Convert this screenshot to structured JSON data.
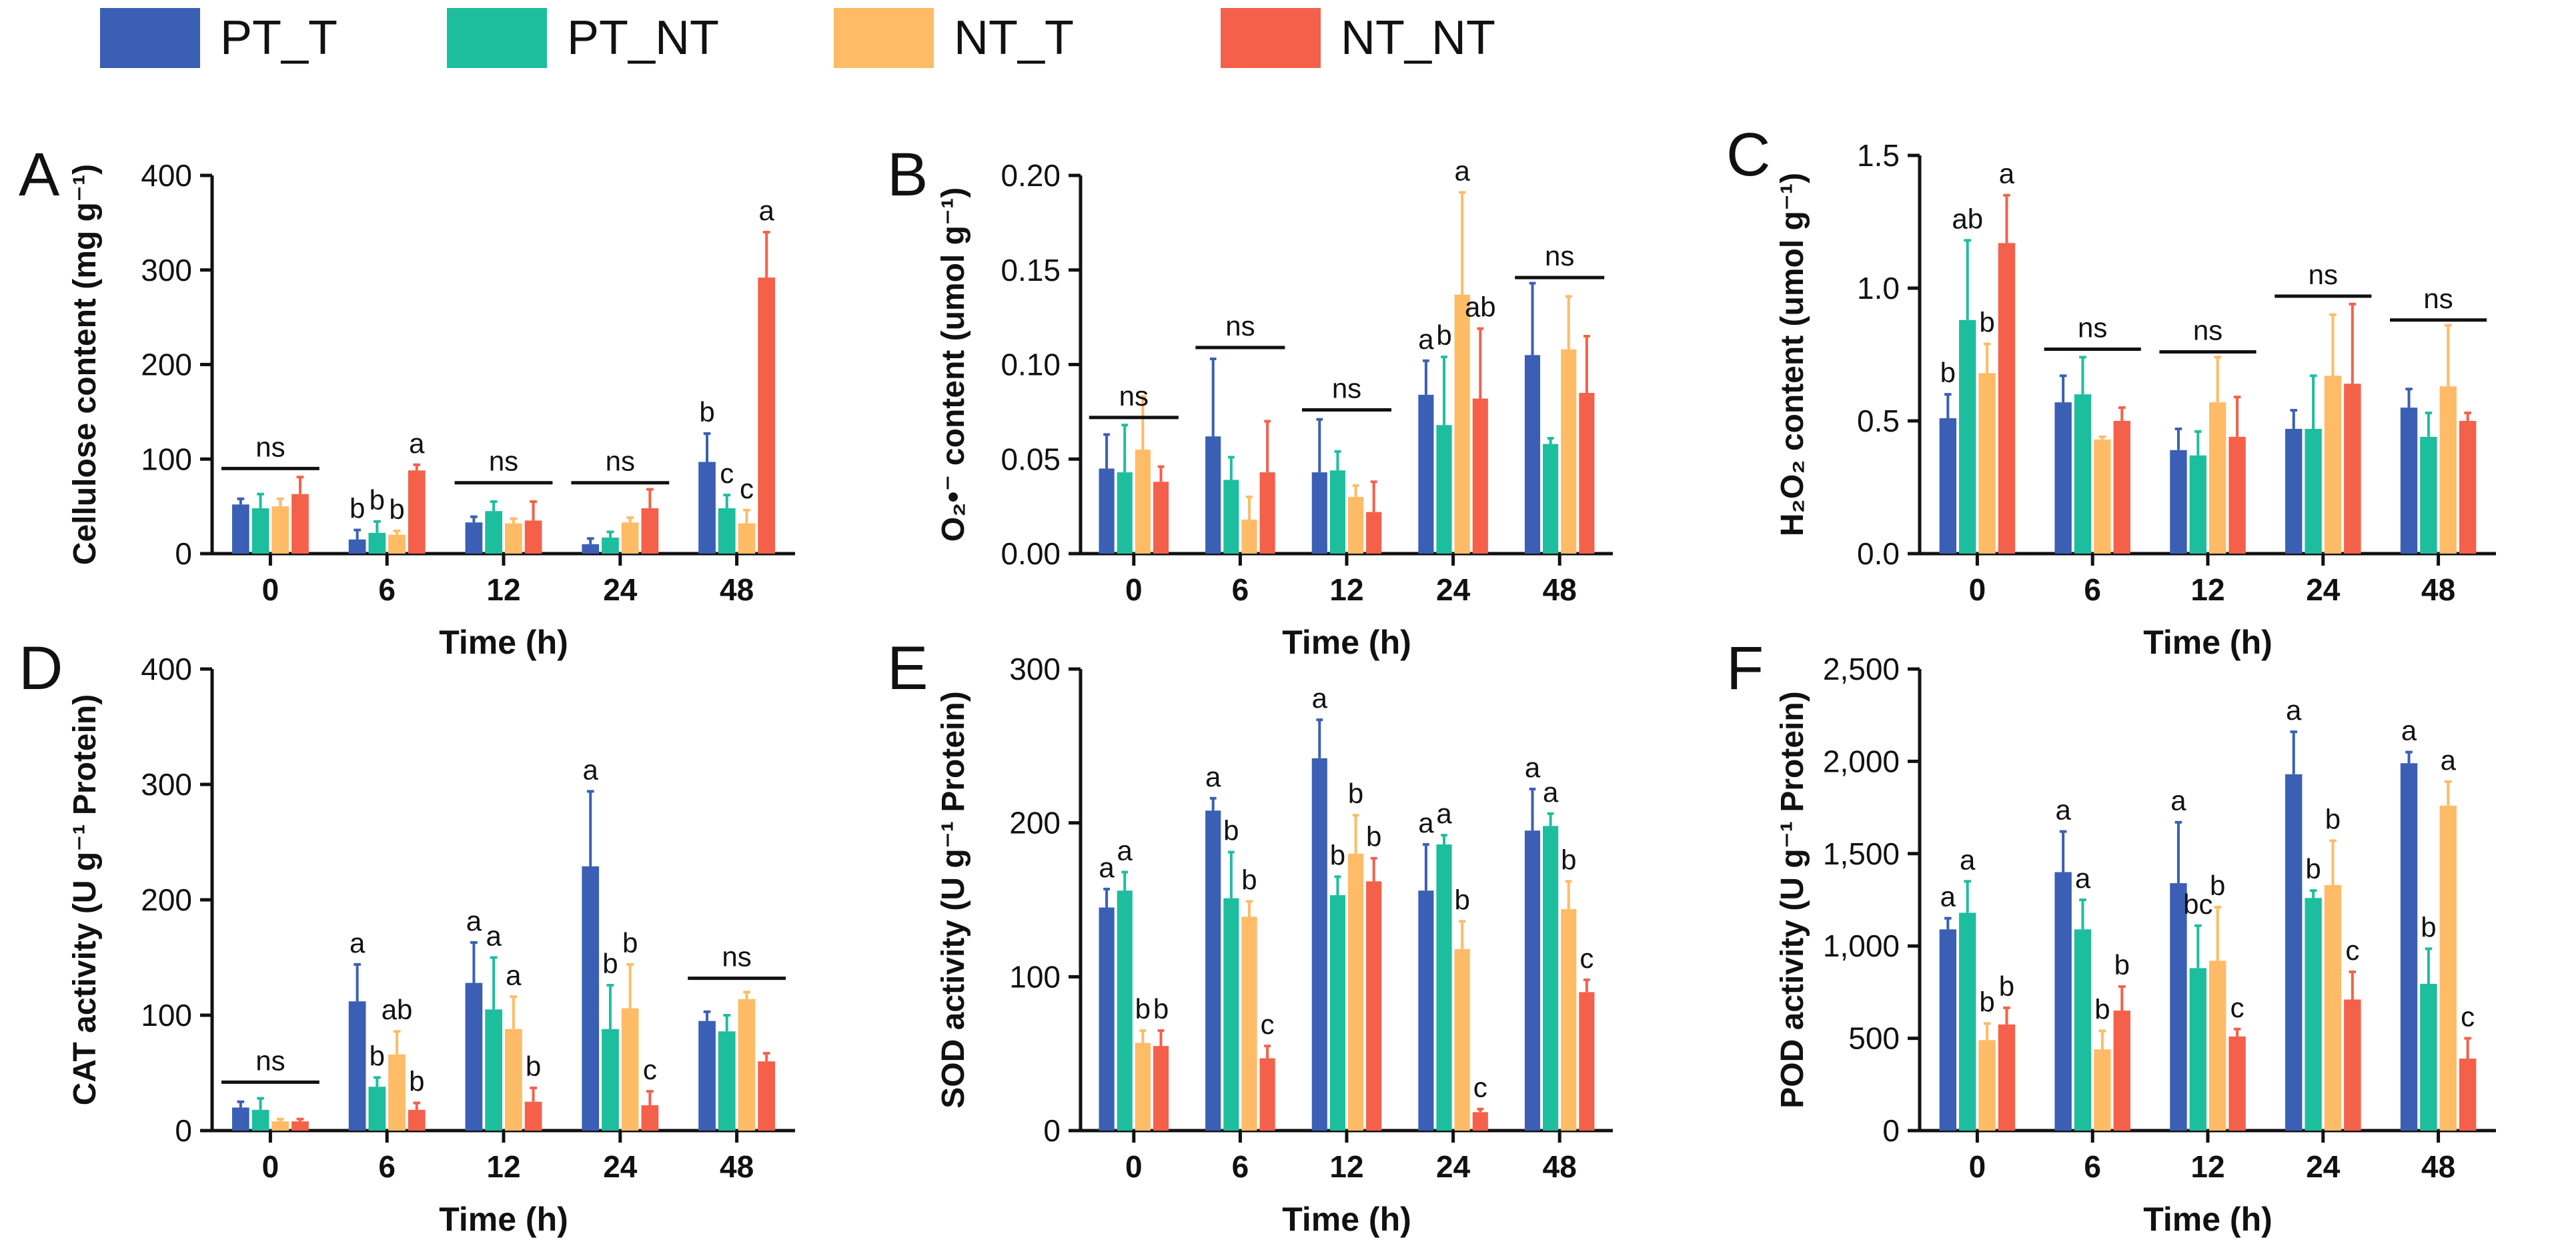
{
  "colors": {
    "PT_T": "#3A5FB5",
    "PT_NT": "#1DBE9E",
    "NT_T": "#FFBB66",
    "NT_NT": "#F4604A",
    "axis": "#111111"
  },
  "legend": {
    "items": [
      {
        "key": "PT_T",
        "label": "PT_T"
      },
      {
        "key": "PT_NT",
        "label": "PT_NT"
      },
      {
        "key": "NT_T",
        "label": "NT_T"
      },
      {
        "key": "NT_NT",
        "label": "NT_NT"
      }
    ]
  },
  "chart_data": [
    {
      "panel": "A",
      "type": "bar",
      "ylabel": "Cellulose content (mg g⁻¹)",
      "xlabel": "Time (h)",
      "categories": [
        "0",
        "6",
        "12",
        "24",
        "48"
      ],
      "ylim": [
        0,
        400
      ],
      "yticks": [
        0,
        100,
        200,
        300,
        400
      ],
      "ytick_labels": [
        "0",
        "100",
        "200",
        "300",
        "400"
      ],
      "series": [
        {
          "name": "PT_T",
          "values": [
            52,
            15,
            33,
            10,
            97
          ],
          "errors": [
            6,
            10,
            6,
            6,
            30
          ],
          "labels": [
            "",
            "b",
            "",
            "",
            "b"
          ]
        },
        {
          "name": "PT_NT",
          "values": [
            48,
            22,
            45,
            17,
            48
          ],
          "errors": [
            15,
            12,
            10,
            6,
            14
          ],
          "labels": [
            "",
            "b",
            "",
            "",
            "c"
          ]
        },
        {
          "name": "NT_T",
          "values": [
            50,
            20,
            32,
            33,
            32
          ],
          "errors": [
            8,
            4,
            5,
            5,
            14
          ],
          "labels": [
            "",
            "b",
            "",
            "",
            "c"
          ]
        },
        {
          "name": "NT_NT",
          "values": [
            63,
            88,
            35,
            48,
            292
          ],
          "errors": [
            18,
            6,
            20,
            20,
            48
          ],
          "labels": [
            "",
            "a",
            "",
            "",
            "a"
          ]
        }
      ],
      "ns": [
        {
          "group": 0,
          "label": "ns",
          "y": 90
        },
        {
          "group": 2,
          "label": "ns",
          "y": 75
        },
        {
          "group": 3,
          "label": "ns",
          "y": 75
        }
      ]
    },
    {
      "panel": "B",
      "type": "bar",
      "ylabel": "O₂•⁻ content (umol g⁻¹)",
      "xlabel": "Time (h)",
      "categories": [
        "0",
        "6",
        "12",
        "24",
        "48"
      ],
      "ylim": [
        0,
        0.2
      ],
      "yticks": [
        0,
        0.05,
        0.1,
        0.15,
        0.2
      ],
      "ytick_labels": [
        "0.00",
        "0.05",
        "0.10",
        "0.15",
        "0.20"
      ],
      "series": [
        {
          "name": "PT_T",
          "values": [
            0.045,
            0.062,
            0.043,
            0.084,
            0.105
          ],
          "errors": [
            0.018,
            0.041,
            0.028,
            0.018,
            0.038
          ],
          "labels": [
            "",
            "",
            "",
            "a",
            ""
          ]
        },
        {
          "name": "PT_NT",
          "values": [
            0.043,
            0.039,
            0.044,
            0.068,
            0.058
          ],
          "errors": [
            0.025,
            0.012,
            0.01,
            0.036,
            0.003
          ],
          "labels": [
            "",
            "",
            "",
            "b",
            ""
          ]
        },
        {
          "name": "NT_T",
          "values": [
            0.055,
            0.018,
            0.03,
            0.137,
            0.108
          ],
          "errors": [
            0.028,
            0.012,
            0.006,
            0.054,
            0.028
          ],
          "labels": [
            "",
            "",
            "",
            "a",
            ""
          ]
        },
        {
          "name": "NT_NT",
          "values": [
            0.038,
            0.043,
            0.022,
            0.082,
            0.085
          ],
          "errors": [
            0.008,
            0.027,
            0.016,
            0.037,
            0.03
          ],
          "labels": [
            "",
            "",
            "",
            "ab",
            ""
          ]
        }
      ],
      "ns": [
        {
          "group": 0,
          "label": "ns",
          "y": 0.072
        },
        {
          "group": 1,
          "label": "ns",
          "y": 0.109
        },
        {
          "group": 2,
          "label": "ns",
          "y": 0.076
        },
        {
          "group": 4,
          "label": "ns",
          "y": 0.146
        }
      ]
    },
    {
      "panel": "C",
      "type": "bar",
      "ylabel": "H₂O₂ content (umol g⁻¹)",
      "xlabel": "Time (h)",
      "categories": [
        "0",
        "6",
        "12",
        "24",
        "48"
      ],
      "ylim": [
        0,
        1.5
      ],
      "yticks": [
        0,
        0.5,
        1.0,
        1.5
      ],
      "ytick_labels": [
        "0.0",
        "0.5",
        "1.0",
        "1.5"
      ],
      "series": [
        {
          "name": "PT_T",
          "values": [
            0.51,
            0.57,
            0.39,
            0.47,
            0.55
          ],
          "errors": [
            0.09,
            0.1,
            0.08,
            0.07,
            0.07
          ],
          "labels": [
            "b",
            "",
            "",
            "",
            ""
          ]
        },
        {
          "name": "PT_NT",
          "values": [
            0.88,
            0.6,
            0.37,
            0.47,
            0.44
          ],
          "errors": [
            0.3,
            0.14,
            0.09,
            0.2,
            0.09
          ],
          "labels": [
            "ab",
            "",
            "",
            "",
            ""
          ]
        },
        {
          "name": "NT_T",
          "values": [
            0.68,
            0.43,
            0.57,
            0.67,
            0.63
          ],
          "errors": [
            0.11,
            0.01,
            0.17,
            0.23,
            0.23
          ],
          "labels": [
            "b",
            "",
            "",
            "",
            ""
          ]
        },
        {
          "name": "NT_NT",
          "values": [
            1.17,
            0.5,
            0.44,
            0.64,
            0.5
          ],
          "errors": [
            0.18,
            0.05,
            0.15,
            0.3,
            0.03
          ],
          "labels": [
            "a",
            "",
            "",
            "",
            ""
          ]
        }
      ],
      "ns": [
        {
          "group": 1,
          "label": "ns",
          "y": 0.77
        },
        {
          "group": 2,
          "label": "ns",
          "y": 0.76
        },
        {
          "group": 3,
          "label": "ns",
          "y": 0.97
        },
        {
          "group": 4,
          "label": "ns",
          "y": 0.88
        }
      ]
    },
    {
      "panel": "D",
      "type": "bar",
      "ylabel": "CAT activity (U g⁻¹ Protein)",
      "xlabel": "Time (h)",
      "categories": [
        "0",
        "6",
        "12",
        "24",
        "48"
      ],
      "ylim": [
        0,
        400
      ],
      "yticks": [
        0,
        100,
        200,
        300,
        400
      ],
      "ytick_labels": [
        "0",
        "100",
        "200",
        "300",
        "400"
      ],
      "series": [
        {
          "name": "PT_T",
          "values": [
            20,
            112,
            128,
            229,
            95
          ],
          "errors": [
            5,
            32,
            35,
            65,
            8
          ],
          "labels": [
            "",
            "a",
            "a",
            "a",
            ""
          ]
        },
        {
          "name": "PT_NT",
          "values": [
            18,
            38,
            105,
            88,
            86
          ],
          "errors": [
            10,
            8,
            45,
            38,
            14
          ],
          "labels": [
            "",
            "b",
            "a",
            "b",
            ""
          ]
        },
        {
          "name": "NT_T",
          "values": [
            8,
            66,
            88,
            106,
            114
          ],
          "errors": [
            2,
            20,
            28,
            38,
            6
          ],
          "labels": [
            "",
            "ab",
            "a",
            "b",
            ""
          ]
        },
        {
          "name": "NT_NT",
          "values": [
            8,
            18,
            25,
            22,
            60
          ],
          "errors": [
            2,
            6,
            12,
            12,
            7
          ],
          "labels": [
            "",
            "b",
            "b",
            "c",
            ""
          ]
        }
      ],
      "ns": [
        {
          "group": 0,
          "label": "ns",
          "y": 42
        },
        {
          "group": 4,
          "label": "ns",
          "y": 132
        }
      ]
    },
    {
      "panel": "E",
      "type": "bar",
      "ylabel": "SOD activity (U g⁻¹ Protein)",
      "xlabel": "Time (h)",
      "categories": [
        "0",
        "6",
        "12",
        "24",
        "48"
      ],
      "ylim": [
        0,
        300
      ],
      "yticks": [
        0,
        100,
        200,
        300
      ],
      "ytick_labels": [
        "0",
        "100",
        "200",
        "300"
      ],
      "series": [
        {
          "name": "PT_T",
          "values": [
            145,
            208,
            242,
            156,
            195
          ],
          "errors": [
            12,
            8,
            25,
            30,
            27
          ],
          "labels": [
            "a",
            "a",
            "a",
            "a",
            "a"
          ]
        },
        {
          "name": "PT_NT",
          "values": [
            156,
            151,
            153,
            186,
            198
          ],
          "errors": [
            12,
            30,
            12,
            6,
            8
          ],
          "labels": [
            "a",
            "b",
            "b",
            "a",
            "a"
          ]
        },
        {
          "name": "NT_T",
          "values": [
            57,
            139,
            180,
            118,
            144
          ],
          "errors": [
            8,
            10,
            25,
            18,
            18
          ],
          "labels": [
            "b",
            "b",
            "b",
            "b",
            "b"
          ]
        },
        {
          "name": "NT_NT",
          "values": [
            55,
            47,
            162,
            12,
            90
          ],
          "errors": [
            10,
            8,
            15,
            2,
            8
          ],
          "labels": [
            "b",
            "c",
            "b",
            "c",
            "c"
          ]
        }
      ],
      "ns": []
    },
    {
      "panel": "F",
      "type": "bar",
      "ylabel": "POD activity (U g⁻¹ Protein)",
      "xlabel": "Time (h)",
      "categories": [
        "0",
        "6",
        "12",
        "24",
        "48"
      ],
      "ylim": [
        0,
        2500
      ],
      "yticks": [
        0,
        500,
        1000,
        1500,
        2000,
        2500
      ],
      "ytick_labels": [
        "0",
        "500",
        "1,000",
        "1,500",
        "2,000",
        "2,500"
      ],
      "series": [
        {
          "name": "PT_T",
          "values": [
            1090,
            1400,
            1340,
            1930,
            1990
          ],
          "errors": [
            60,
            220,
            330,
            230,
            60
          ],
          "labels": [
            "a",
            "a",
            "a",
            "a",
            "a"
          ]
        },
        {
          "name": "PT_NT",
          "values": [
            1180,
            1090,
            880,
            1260,
            795
          ],
          "errors": [
            170,
            160,
            230,
            40,
            190
          ],
          "labels": [
            "a",
            "a",
            "bc",
            "b",
            "b"
          ]
        },
        {
          "name": "NT_T",
          "values": [
            490,
            440,
            920,
            1330,
            1760
          ],
          "errors": [
            90,
            100,
            290,
            240,
            130
          ],
          "labels": [
            "b",
            "b",
            "b",
            "b",
            "a"
          ]
        },
        {
          "name": "NT_NT",
          "values": [
            575,
            650,
            510,
            710,
            390
          ],
          "errors": [
            90,
            130,
            40,
            150,
            110
          ],
          "labels": [
            "b",
            "b",
            "c",
            "c",
            "c"
          ]
        }
      ],
      "ns": []
    }
  ]
}
